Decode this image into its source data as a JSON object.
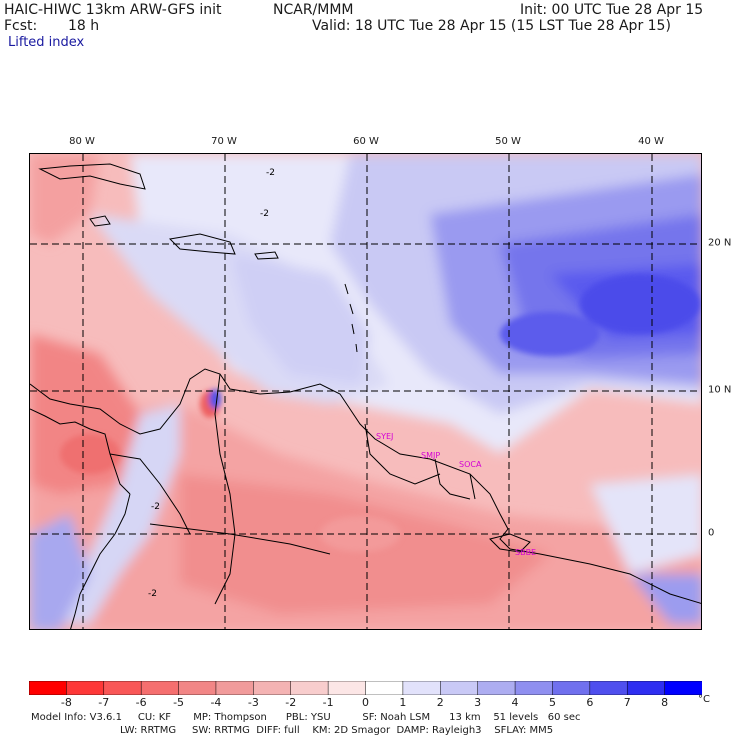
{
  "header": {
    "model_title": "HAIC-HIWC 13km ARW-GFS init",
    "org": "NCAR/MMM",
    "init": "Init: 00 UTC Tue 28 Apr 15",
    "fcst_label": "Fcst:",
    "fcst_hours": "18 h",
    "valid": "Valid: 18 UTC Tue 28 Apr 15 (15 LST Tue 28 Apr 15)",
    "field": "Lifted index"
  },
  "axes": {
    "longitudes": [
      "80 W",
      "70 W",
      "60 W",
      "50 W",
      "40 W"
    ],
    "latitudes": [
      "20 N",
      "10 N",
      "0"
    ]
  },
  "contour_labels": [
    "-2",
    "-2",
    "-2",
    "-2"
  ],
  "stations": [
    "SYEJ",
    "SMJP",
    "SOCA",
    "SBBE"
  ],
  "colorbar": {
    "ticks": [
      "-8",
      "-7",
      "-6",
      "-5",
      "-4",
      "-3",
      "-2",
      "-1",
      "0",
      "1",
      "2",
      "3",
      "4",
      "5",
      "6",
      "7",
      "8"
    ],
    "unit": "°C",
    "colors": [
      "#ff0000",
      "#fe3838",
      "#f95757",
      "#f56f6f",
      "#f28686",
      "#f19b9b",
      "#f4b3b3",
      "#f8cdcd",
      "#fce6e6",
      "#ffffff",
      "#e2e2fb",
      "#c9c9f6",
      "#adadf1",
      "#8f8ff0",
      "#7070ee",
      "#4f4fee",
      "#2e2ef1",
      "#0000ff"
    ]
  },
  "model_info": {
    "line1": "Model Info: V3.6.1     CU: KF       MP: Thompson      PBL: YSU          SF: Noah LSM      13 km    51 levels   60 sec",
    "line2": "LW: RRTMG     SW: RRTMG  DIFF: full    KM: 2D Smagor  DAMP: Rayleigh3    SFLAY: MM5"
  }
}
